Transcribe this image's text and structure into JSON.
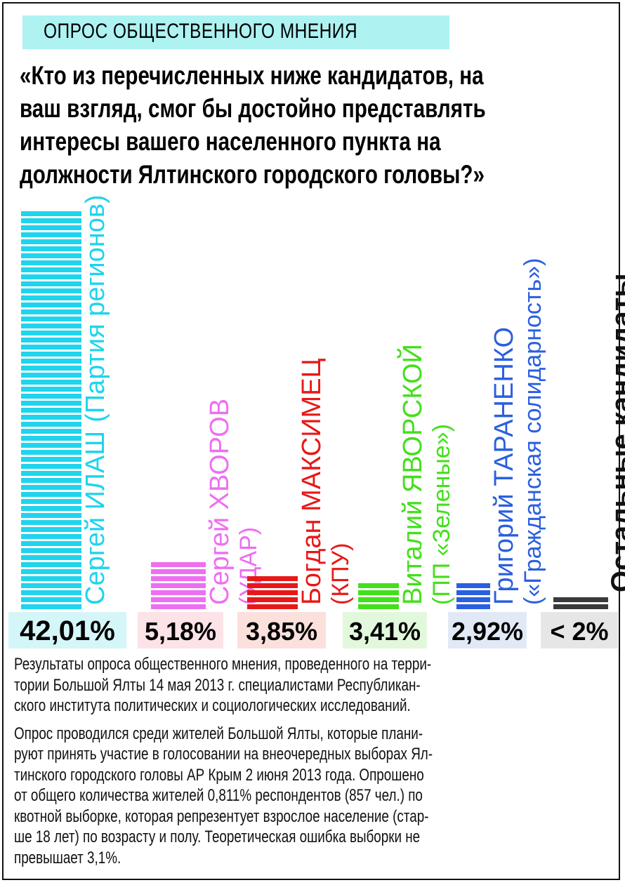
{
  "header": {
    "label": "ОПРОС ОБЩЕСТВЕННОГО МНЕНИЯ",
    "band_color": "#aef2f2"
  },
  "question": {
    "lines": [
      "«Кто из перечисленных ниже кандидатов, на",
      "ваш взгляд, смог бы достойно представлять",
      "интересы вашего населенного пункта на",
      "должности Ялтинского городского головы?»"
    ]
  },
  "chart_data": {
    "type": "bar",
    "title": "«Кто из перечисленных ниже кандидатов, на ваш взгляд, смог бы достойно представлять интересы вашего населенного пункта на должности Ялтинского городского головы?»",
    "categories": [
      "Сергей ИЛАШ (Партия регионов)",
      "Сергей ХВОРОВ (УДАР)",
      "Богдан МАКСИМЕЦ (КПУ)",
      "Виталий ЯВОРСКОЙ (ПП «Зеленые»)",
      "Григорий ТАРАНЕНКО («Гражданская солидарность»)",
      "Остальные кандидаты"
    ],
    "values": [
      42.01,
      5.18,
      3.85,
      3.41,
      2.92,
      2
    ],
    "value_labels": [
      "42,01%",
      "5,18%",
      "3,85%",
      "3,41%",
      "2,92%",
      "< 2%"
    ],
    "bars": [
      {
        "first": "Сергей ",
        "surname": "ИЛАШ",
        "party": "(Партия регионов)",
        "color": "#1fd4ec",
        "text_color": "#1fd4ec",
        "label_bg": "#d4f6f8"
      },
      {
        "first": "Сергей ",
        "surname": "ХВОРОВ",
        "party": "(УДАР)",
        "color": "#ee6ef2",
        "text_color": "#ee6ef2",
        "label_bg": "#fbe3e8"
      },
      {
        "first": "Богдан ",
        "surname": "МАКСИМЕЦ",
        "party": "(КПУ)",
        "color": "#e81818",
        "text_color": "#e81818",
        "label_bg": "#fbe0dc"
      },
      {
        "first": "Виталий ",
        "surname": "ЯВОРСКОЙ",
        "party": "(ПП «Зеленые»)",
        "color": "#42e01a",
        "text_color": "#42e01a",
        "label_bg": "#e2f8dc"
      },
      {
        "first": "Григорий ",
        "surname": "ТАРАНЕНКО",
        "party": "(«Гражданская солидарность»)",
        "color": "#2a5fe0",
        "text_color": "#2a5fe0",
        "label_bg": "#e2e9f6"
      },
      {
        "first": "",
        "surname": "Остальные кандидаты",
        "party": "",
        "color": "#3a3a3a",
        "text_color": "#111111",
        "label_bg": "#e6e6e6"
      }
    ],
    "xlabel": "",
    "ylabel": "",
    "grid": false,
    "legend": "none"
  },
  "notes": {
    "paragraph1": [
      "Результаты опроса общественного мнения, проведенного на терри-",
      "тории Большой Ялты 14 мая 2013 г. специалистами Республикан-",
      "ского института политических и социологических исследований."
    ],
    "paragraph2": [
      "Опрос проводился среди жителей Большой Ялты, которые плани-",
      "руют принять участие в голосовании на внеочередных выборах Ял-",
      "тинского городского головы АР Крым 2 июня 2013 года. Опрошено",
      "от общего количества жителей 0,811% респондентов (857 чел.) по",
      "квотной выборке, которая репрезентует взрослое население (стар-",
      "ше 18 лет) по возрасту и полу. Теоретическая ошибка выборки не",
      "превышает 3,1%."
    ]
  }
}
